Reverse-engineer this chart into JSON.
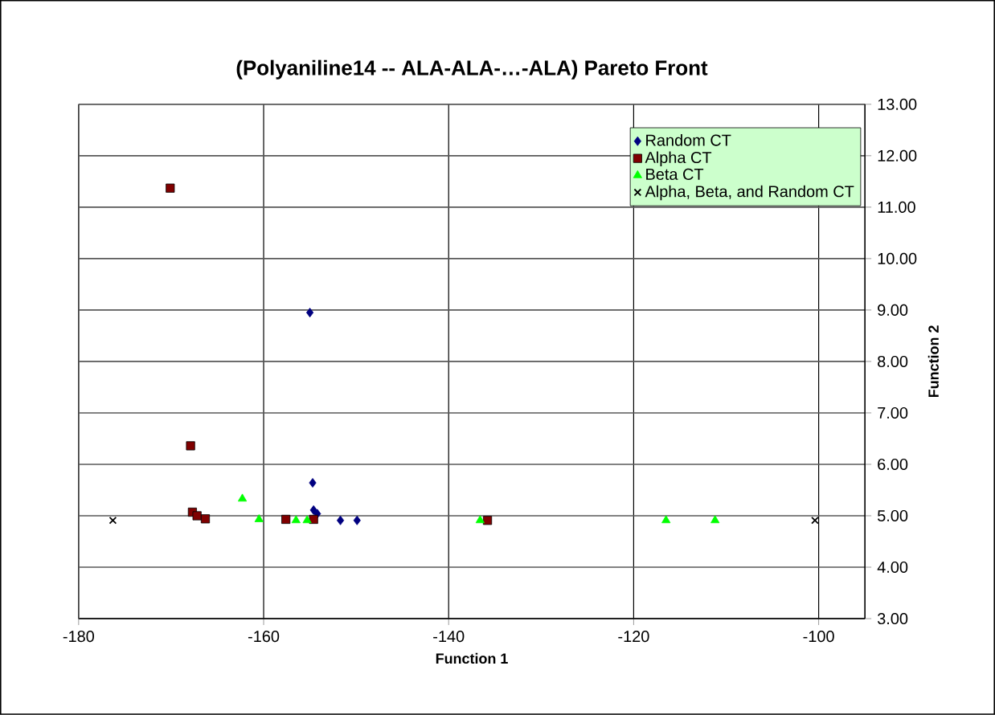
{
  "chart_data": {
    "type": "scatter",
    "title": "(Polyaniline14 -- ALA-ALA-…-ALA) Pareto Front",
    "xlabel": "Function 1",
    "ylabel": "Function 2",
    "xlim": [
      -180,
      -95
    ],
    "ylim": [
      3,
      13
    ],
    "xticks": [
      -180,
      -160,
      -140,
      -120,
      -100
    ],
    "yticks": [
      {
        "value": 3,
        "label": "3.00"
      },
      {
        "value": 4,
        "label": "4.00"
      },
      {
        "value": 5,
        "label": "5.00"
      },
      {
        "value": 6,
        "label": "6.00"
      },
      {
        "value": 7,
        "label": "7.00"
      },
      {
        "value": 8,
        "label": "8.00"
      },
      {
        "value": 9,
        "label": "9.00"
      },
      {
        "value": 10,
        "label": "10.00"
      },
      {
        "value": 11,
        "label": "11.00"
      },
      {
        "value": 12,
        "label": "12.00"
      },
      {
        "value": 13,
        "label": "13.00"
      }
    ],
    "grid": true,
    "legend": "top right",
    "series": [
      {
        "name": "Random CT",
        "color": "#000080",
        "marker": "diamond",
        "x": [
          -155.0,
          -154.7,
          -154.6,
          -154.2,
          -151.7,
          -149.9
        ],
        "values": [
          8.95,
          5.64,
          5.11,
          5.04,
          4.91,
          4.91
        ]
      },
      {
        "name": "Alpha CT",
        "color": "#800000",
        "marker": "square",
        "x": [
          -170.1,
          -167.9,
          -167.7,
          -167.2,
          -166.3,
          -157.6,
          -154.6,
          -135.8
        ],
        "values": [
          11.37,
          6.36,
          5.07,
          5.0,
          4.94,
          4.93,
          4.93,
          4.91
        ]
      },
      {
        "name": "Beta CT",
        "color": "#00ff00",
        "marker": "triangle",
        "x": [
          -162.3,
          -160.5,
          -156.5,
          -155.3,
          -136.6,
          -116.5,
          -111.2
        ],
        "values": [
          5.33,
          4.93,
          4.91,
          4.91,
          4.91,
          4.91,
          4.91
        ]
      },
      {
        "name": "Alpha, Beta, and Random CT",
        "color": "#000000",
        "marker": "cross",
        "x": [
          -176.3,
          -100.4
        ],
        "values": [
          4.91,
          4.91
        ]
      }
    ]
  }
}
